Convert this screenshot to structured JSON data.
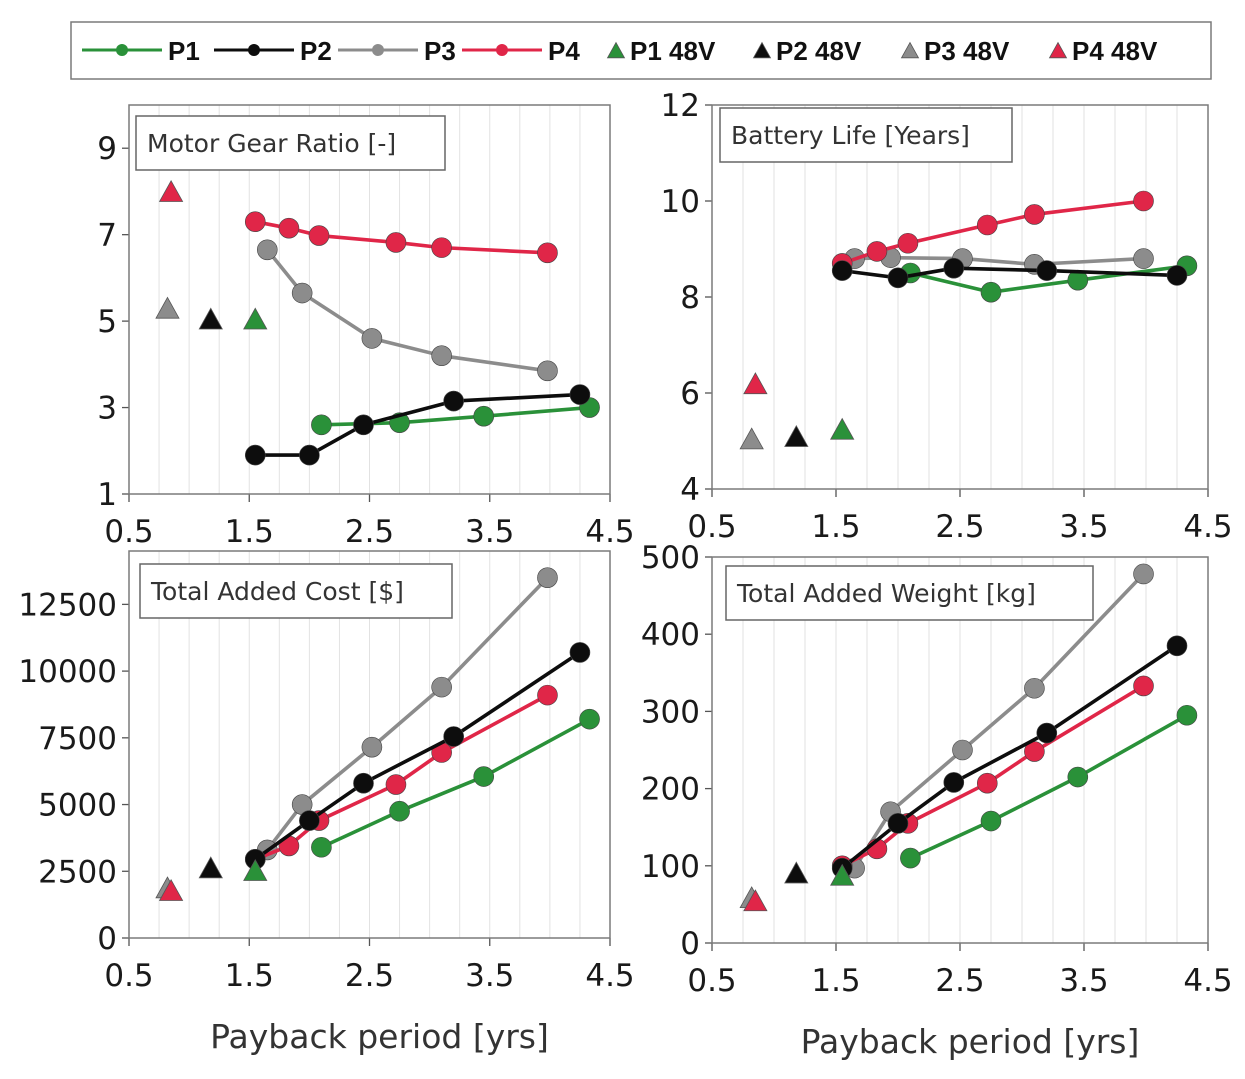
{
  "colors": {
    "P1": "#2a9139",
    "P2": "#0d0d0d",
    "P3": "#8c8c8c",
    "P4": "#e02648"
  },
  "legend": [
    {
      "label": "P1",
      "key": "P1",
      "kind": "line"
    },
    {
      "label": "P2",
      "key": "P2",
      "kind": "line"
    },
    {
      "label": "P3",
      "key": "P3",
      "kind": "line"
    },
    {
      "label": "P4",
      "key": "P4",
      "kind": "line"
    },
    {
      "label": "P1 48V",
      "key": "P1",
      "kind": "triangle"
    },
    {
      "label": "P2 48V",
      "key": "P2",
      "kind": "triangle"
    },
    {
      "label": "P3 48V",
      "key": "P3",
      "kind": "triangle"
    },
    {
      "label": "P4 48V",
      "key": "P4",
      "kind": "triangle"
    }
  ],
  "chart_data": [
    {
      "type": "line",
      "title": "Motor Gear Ratio [-]",
      "xlabel": "",
      "xlim": [
        0.5,
        4.5
      ],
      "xticks": [
        "0.5",
        "1.5",
        "2.5",
        "3.5",
        "4.5"
      ],
      "ylim": [
        1,
        10
      ],
      "yticks": [
        "1",
        "3",
        "5",
        "7",
        "9"
      ],
      "grid": true,
      "series": [
        {
          "name": "P1",
          "x": [
            2.1,
            2.75,
            3.45,
            4.33
          ],
          "y": [
            2.6,
            2.65,
            2.8,
            3.0
          ]
        },
        {
          "name": "P2",
          "x": [
            1.55,
            2.0,
            2.45,
            3.2,
            4.25
          ],
          "y": [
            1.9,
            1.9,
            2.6,
            3.15,
            3.3
          ]
        },
        {
          "name": "P3",
          "x": [
            1.65,
            1.94,
            2.52,
            3.1,
            3.98
          ],
          "y": [
            6.65,
            5.65,
            4.6,
            4.2,
            3.85
          ]
        },
        {
          "name": "P4",
          "x": [
            1.55,
            1.83,
            2.08,
            2.72,
            3.1,
            3.98
          ],
          "y": [
            7.3,
            7.15,
            6.98,
            6.82,
            6.7,
            6.58
          ]
        },
        {
          "name": "P1 48V",
          "x": [
            1.55
          ],
          "y": [
            5.0
          ]
        },
        {
          "name": "P2 48V",
          "x": [
            1.18
          ],
          "y": [
            5.0
          ]
        },
        {
          "name": "P3 48V",
          "x": [
            0.82
          ],
          "y": [
            5.25
          ]
        },
        {
          "name": "P4 48V",
          "x": [
            0.85
          ],
          "y": [
            7.95
          ]
        }
      ]
    },
    {
      "type": "line",
      "title": "Battery Life [Years]",
      "xlabel": "",
      "xlim": [
        0.5,
        4.5
      ],
      "xticks": [
        "0.5",
        "1.5",
        "2.5",
        "3.5",
        "4.5"
      ],
      "ylim": [
        4,
        12
      ],
      "yticks": [
        "4",
        "6",
        "8",
        "10",
        "12"
      ],
      "grid": true,
      "series": [
        {
          "name": "P1",
          "x": [
            2.1,
            2.75,
            3.45,
            4.33
          ],
          "y": [
            8.5,
            8.1,
            8.35,
            8.65
          ]
        },
        {
          "name": "P2",
          "x": [
            1.55,
            2.0,
            2.45,
            3.2,
            4.25
          ],
          "y": [
            8.55,
            8.4,
            8.6,
            8.55,
            8.45
          ]
        },
        {
          "name": "P3",
          "x": [
            1.65,
            1.94,
            2.52,
            3.1,
            3.98
          ],
          "y": [
            8.8,
            8.82,
            8.8,
            8.68,
            8.8
          ]
        },
        {
          "name": "P4",
          "x": [
            1.55,
            1.83,
            2.08,
            2.72,
            3.1,
            3.98
          ],
          "y": [
            8.7,
            8.95,
            9.12,
            9.5,
            9.72,
            10.0
          ]
        },
        {
          "name": "P1 48V",
          "x": [
            1.55
          ],
          "y": [
            5.2
          ]
        },
        {
          "name": "P2 48V",
          "x": [
            1.18
          ],
          "y": [
            5.05
          ]
        },
        {
          "name": "P3 48V",
          "x": [
            0.82
          ],
          "y": [
            5.0
          ]
        },
        {
          "name": "P4 48V",
          "x": [
            0.85
          ],
          "y": [
            6.15
          ]
        }
      ]
    },
    {
      "type": "line",
      "title": "Total Added Cost [$]",
      "xlabel": "Payback period [yrs]",
      "xlim": [
        0.5,
        4.5
      ],
      "xticks": [
        "0.5",
        "1.5",
        "2.5",
        "3.5",
        "4.5"
      ],
      "ylim": [
        0,
        14500
      ],
      "yticks": [
        "0",
        "2500",
        "5000",
        "7500",
        "10000",
        "12500"
      ],
      "grid": true,
      "series": [
        {
          "name": "P1",
          "x": [
            2.1,
            2.75,
            3.45,
            4.33
          ],
          "y": [
            3400,
            4750,
            6050,
            8200
          ]
        },
        {
          "name": "P2",
          "x": [
            1.55,
            2.0,
            2.45,
            3.2,
            4.25
          ],
          "y": [
            2950,
            4400,
            5800,
            7550,
            10700
          ]
        },
        {
          "name": "P3",
          "x": [
            1.65,
            1.94,
            2.52,
            3.1,
            3.98
          ],
          "y": [
            3300,
            5000,
            7150,
            9400,
            13500
          ]
        },
        {
          "name": "P4",
          "x": [
            1.55,
            1.83,
            2.08,
            2.72,
            3.1,
            3.98
          ],
          "y": [
            2950,
            3450,
            4400,
            5750,
            6950,
            9100
          ]
        },
        {
          "name": "P1 48V",
          "x": [
            1.55
          ],
          "y": [
            2450
          ]
        },
        {
          "name": "P2 48V",
          "x": [
            1.18
          ],
          "y": [
            2550
          ]
        },
        {
          "name": "P3 48V",
          "x": [
            0.82
          ],
          "y": [
            1800
          ]
        },
        {
          "name": "P4 48V",
          "x": [
            0.85
          ],
          "y": [
            1700
          ]
        }
      ]
    },
    {
      "type": "line",
      "title": "Total Added Weight [kg]",
      "xlabel": "Payback period [yrs]",
      "xlim": [
        0.5,
        4.5
      ],
      "xticks": [
        "0.5",
        "1.5",
        "2.5",
        "3.5",
        "4.5"
      ],
      "ylim": [
        0,
        500
      ],
      "yticks": [
        "0",
        "100",
        "200",
        "300",
        "400",
        "500"
      ],
      "grid": true,
      "series": [
        {
          "name": "P1",
          "x": [
            2.1,
            2.75,
            3.45,
            4.33
          ],
          "y": [
            110,
            158,
            215,
            295
          ]
        },
        {
          "name": "P2",
          "x": [
            1.55,
            2.0,
            2.45,
            3.2,
            4.25
          ],
          "y": [
            97,
            155,
            208,
            272,
            385
          ]
        },
        {
          "name": "P3",
          "x": [
            1.65,
            1.94,
            2.52,
            3.1,
            3.98
          ],
          "y": [
            97,
            170,
            250,
            330,
            478
          ]
        },
        {
          "name": "P4",
          "x": [
            1.55,
            1.83,
            2.08,
            2.72,
            3.1,
            3.98
          ],
          "y": [
            100,
            122,
            155,
            207,
            248,
            333
          ]
        },
        {
          "name": "P1 48V",
          "x": [
            1.55
          ],
          "y": [
            85
          ]
        },
        {
          "name": "P2 48V",
          "x": [
            1.18
          ],
          "y": [
            88
          ]
        },
        {
          "name": "P3 48V",
          "x": [
            0.82
          ],
          "y": [
            56
          ]
        },
        {
          "name": "P4 48V",
          "x": [
            0.85
          ],
          "y": [
            52
          ]
        }
      ]
    }
  ]
}
